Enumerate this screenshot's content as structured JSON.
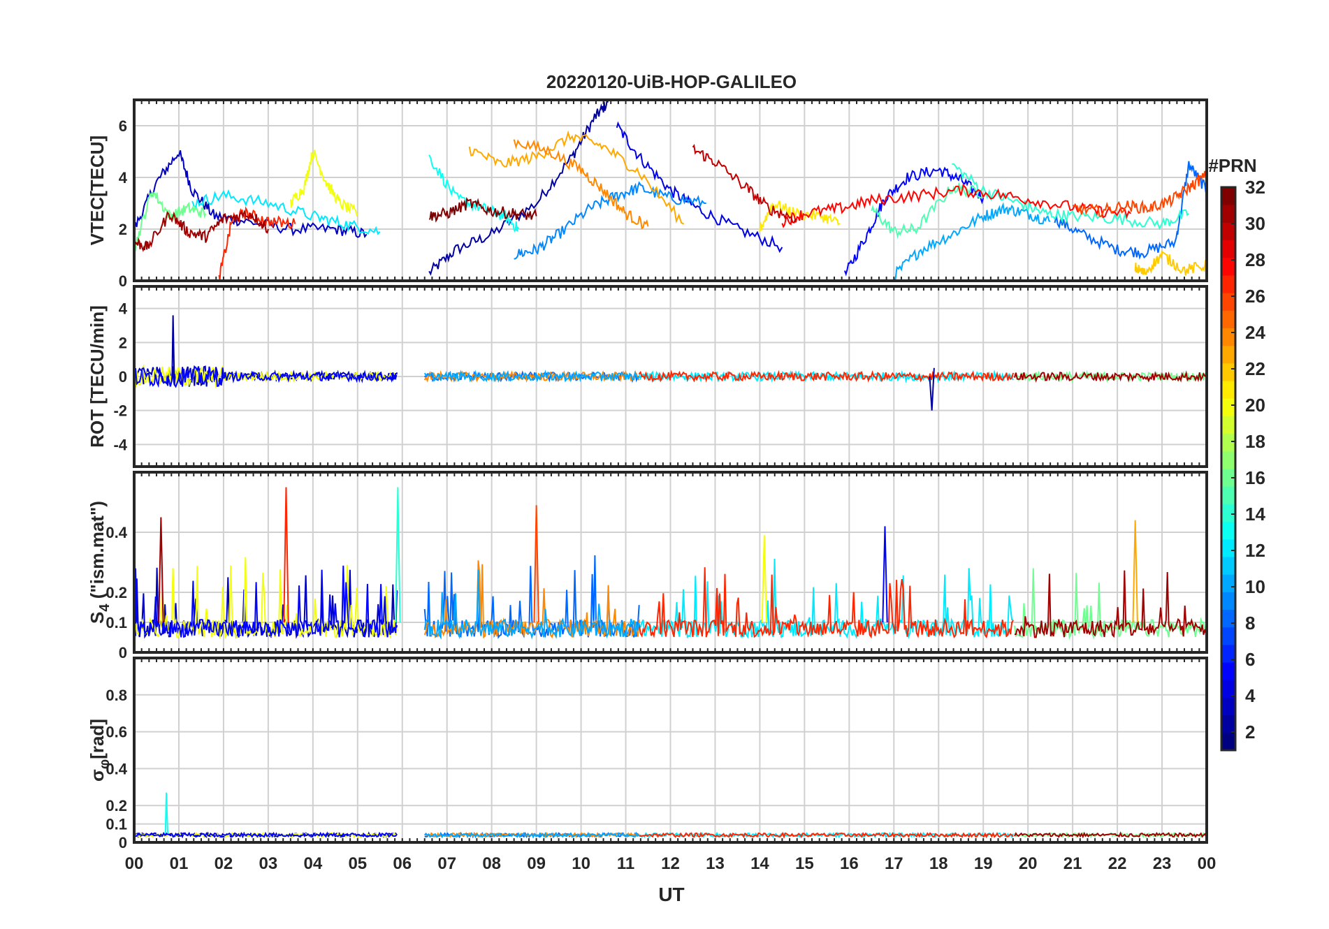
{
  "figure": {
    "title": "20220120-UiB-HOP-GALILEO",
    "xlabel": "UT",
    "colorbar": {
      "label": "#PRN",
      "range": [
        1,
        32
      ],
      "ticks": [
        "2",
        "4",
        "6",
        "8",
        "10",
        "12",
        "14",
        "16",
        "18",
        "20",
        "22",
        "24",
        "26",
        "28",
        "30",
        "32"
      ],
      "colormap": "jet"
    }
  },
  "chart_data": [
    {
      "type": "line",
      "panel": "VTEC",
      "ylabel": "VTEC[TECU]",
      "xlim": [
        0,
        24
      ],
      "ylim": [
        0,
        7
      ],
      "yticks": [
        "0",
        "2",
        "4",
        "6"
      ],
      "xticks": [
        "00",
        "01",
        "02",
        "03",
        "04",
        "05",
        "06",
        "07",
        "08",
        "09",
        "10",
        "11",
        "12",
        "13",
        "14",
        "15",
        "16",
        "17",
        "18",
        "19",
        "20",
        "21",
        "22",
        "23",
        "00"
      ],
      "grid": true,
      "series": [
        {
          "prn": 2,
          "x": [
            6.6,
            7.2,
            8.0,
            9.0,
            9.8,
            10.3,
            10.6
          ],
          "y": [
            0.3,
            1.2,
            1.8,
            3.0,
            4.8,
            6.3,
            6.9
          ]
        },
        {
          "prn": 3,
          "x": [
            0.0,
            0.5,
            1.0,
            1.3,
            1.8,
            2.5,
            3.5,
            4.5,
            5.2
          ],
          "y": [
            2.0,
            3.8,
            5.0,
            3.5,
            2.5,
            2.3,
            2.0,
            2.0,
            1.8
          ]
        },
        {
          "prn": 4,
          "x": [
            10.8,
            11.3,
            12.0,
            12.6,
            13.5,
            14.5
          ],
          "y": [
            6.0,
            4.8,
            3.5,
            2.8,
            2.0,
            1.3
          ]
        },
        {
          "prn": 5,
          "x": [
            15.9,
            16.4,
            16.8,
            17.3,
            18.0,
            18.5,
            19.0
          ],
          "y": [
            0.2,
            1.8,
            3.2,
            4.0,
            4.3,
            3.9,
            3.2
          ]
        },
        {
          "prn": 8,
          "x": [
            20.6,
            21.2,
            22.0,
            22.6,
            23.3,
            23.6,
            24.0
          ],
          "y": [
            2.4,
            1.8,
            1.2,
            1.1,
            1.5,
            4.5,
            3.5
          ]
        },
        {
          "prn": 9,
          "x": [
            8.5,
            9.0,
            9.5,
            10.2,
            10.8,
            11.3,
            12.0,
            12.8
          ],
          "y": [
            1.0,
            1.2,
            1.8,
            2.8,
            3.3,
            3.6,
            3.2,
            3.0
          ]
        },
        {
          "prn": 10,
          "x": [
            17.0,
            17.6,
            18.3,
            19.0,
            19.5,
            20.0,
            20.5
          ],
          "y": [
            0.2,
            1.2,
            1.8,
            2.5,
            2.8,
            2.6,
            2.3
          ]
        },
        {
          "prn": 12,
          "x": [
            1.3,
            2.0,
            3.0,
            4.0,
            4.7,
            5.5
          ],
          "y": [
            3.0,
            3.3,
            3.0,
            2.5,
            2.2,
            1.9
          ]
        },
        {
          "prn": 13,
          "x": [
            6.6,
            7.2,
            7.8,
            8.3,
            8.6
          ],
          "y": [
            4.8,
            3.2,
            2.8,
            2.5,
            2.0
          ]
        },
        {
          "prn": 14,
          "x": [
            18.3,
            19.0,
            19.8,
            20.4,
            21.0,
            22.0,
            23.0,
            23.6
          ],
          "y": [
            4.5,
            3.5,
            3.0,
            2.6,
            2.5,
            2.4,
            2.2,
            2.6
          ]
        },
        {
          "prn": 15,
          "x": [
            16.5,
            17.0,
            17.5,
            18.3,
            19.0
          ],
          "y": [
            2.8,
            1.9,
            2.0,
            3.6,
            3.4
          ]
        },
        {
          "prn": 16,
          "x": [
            0.0,
            0.4,
            0.8,
            1.2,
            1.6
          ],
          "y": [
            1.2,
            3.5,
            2.5,
            2.8,
            2.6
          ]
        },
        {
          "prn": 20,
          "x": [
            3.5,
            3.8,
            4.0,
            4.3,
            4.6,
            5.0
          ],
          "y": [
            3.0,
            3.6,
            5.0,
            3.8,
            3.0,
            2.6
          ]
        },
        {
          "prn": 21,
          "x": [
            14.0,
            14.3,
            14.8,
            15.4,
            15.8
          ],
          "y": [
            2.0,
            3.0,
            2.6,
            2.5,
            2.2
          ]
        },
        {
          "prn": 23,
          "x": [
            7.5,
            8.2,
            9.0,
            9.8,
            10.5,
            11.3,
            12.3
          ],
          "y": [
            5.1,
            4.5,
            4.8,
            5.6,
            5.2,
            4.2,
            2.2
          ]
        },
        {
          "prn": 24,
          "x": [
            8.5,
            9.3,
            10.0,
            10.5,
            11.0,
            11.5
          ],
          "y": [
            5.4,
            5.0,
            4.3,
            3.5,
            2.6,
            2.1
          ]
        },
        {
          "prn": 27,
          "x": [
            1.9,
            2.2,
            2.5,
            3.0,
            3.6
          ],
          "y": [
            0.1,
            2.4,
            2.6,
            2.3,
            2.2
          ]
        },
        {
          "prn": 28,
          "x": [
            14.5,
            15.0,
            15.8,
            16.5,
            17.5,
            18.5,
            19.5,
            20.5,
            21.5,
            22.3
          ],
          "y": [
            2.3,
            2.6,
            2.8,
            3.1,
            3.3,
            3.5,
            3.3,
            3.0,
            2.7,
            2.6
          ]
        },
        {
          "prn": 30,
          "x": [
            12.5,
            13.0,
            13.7,
            14.2,
            14.8
          ],
          "y": [
            5.1,
            4.6,
            3.6,
            2.8,
            2.4
          ]
        },
        {
          "prn": 31,
          "x": [
            0.0,
            0.3,
            0.8,
            1.2,
            1.6,
            2.0,
            2.6,
            3.0
          ],
          "y": [
            1.5,
            1.3,
            2.6,
            1.9,
            1.7,
            2.4,
            2.6,
            2.0
          ]
        },
        {
          "prn": 32,
          "x": [
            6.6,
            7.0,
            7.5,
            8.0,
            8.5,
            9.0
          ],
          "y": [
            2.5,
            2.6,
            3.0,
            2.7,
            2.6,
            2.5
          ]
        },
        {
          "prn": 26,
          "x": [
            21.0,
            21.6,
            22.2,
            22.7,
            23.2,
            23.6,
            24.0
          ],
          "y": [
            2.8,
            2.7,
            2.9,
            2.8,
            3.1,
            3.6,
            4.1
          ]
        },
        {
          "prn": 22,
          "x": [
            22.4,
            22.6,
            23.0,
            23.5,
            24.0
          ],
          "y": [
            0.5,
            0.3,
            1.0,
            0.4,
            0.6
          ]
        }
      ]
    },
    {
      "type": "line",
      "panel": "ROT",
      "ylabel": "ROT [TECU/min]",
      "xlim": [
        0,
        24
      ],
      "ylim": [
        -5.3,
        5.3
      ],
      "yticks": [
        "-4",
        "-2",
        "0",
        "2",
        "4"
      ],
      "grid": true,
      "description_values": {
        "max_spike": 3.6,
        "min_spike": -2.0
      }
    },
    {
      "type": "line",
      "panel": "S4",
      "ylabel_main": "S",
      "ylabel_sub": "4",
      "ylabel_rest": " (\"ism.mat\")",
      "xlim": [
        0,
        24
      ],
      "ylim": [
        0,
        0.6
      ],
      "yticks": [
        "0",
        "0.1",
        "0.2",
        "0.4"
      ],
      "ytick_positions": [
        0,
        0.1,
        0.2,
        0.4
      ],
      "grid": true,
      "description_values": {
        "max_peak": 0.55
      }
    },
    {
      "type": "line",
      "panel": "sigma_phi",
      "ylabel_main": "σ",
      "ylabel_sub": "φ",
      "ylabel_rest": "[rad]",
      "xlim": [
        0,
        24
      ],
      "ylim": [
        0,
        1.0
      ],
      "yticks": [
        "0",
        "0.1",
        "0.2",
        "0.4",
        "0.6",
        "0.8"
      ],
      "grid": true,
      "description_values": {
        "max_peak": 0.27
      }
    }
  ]
}
